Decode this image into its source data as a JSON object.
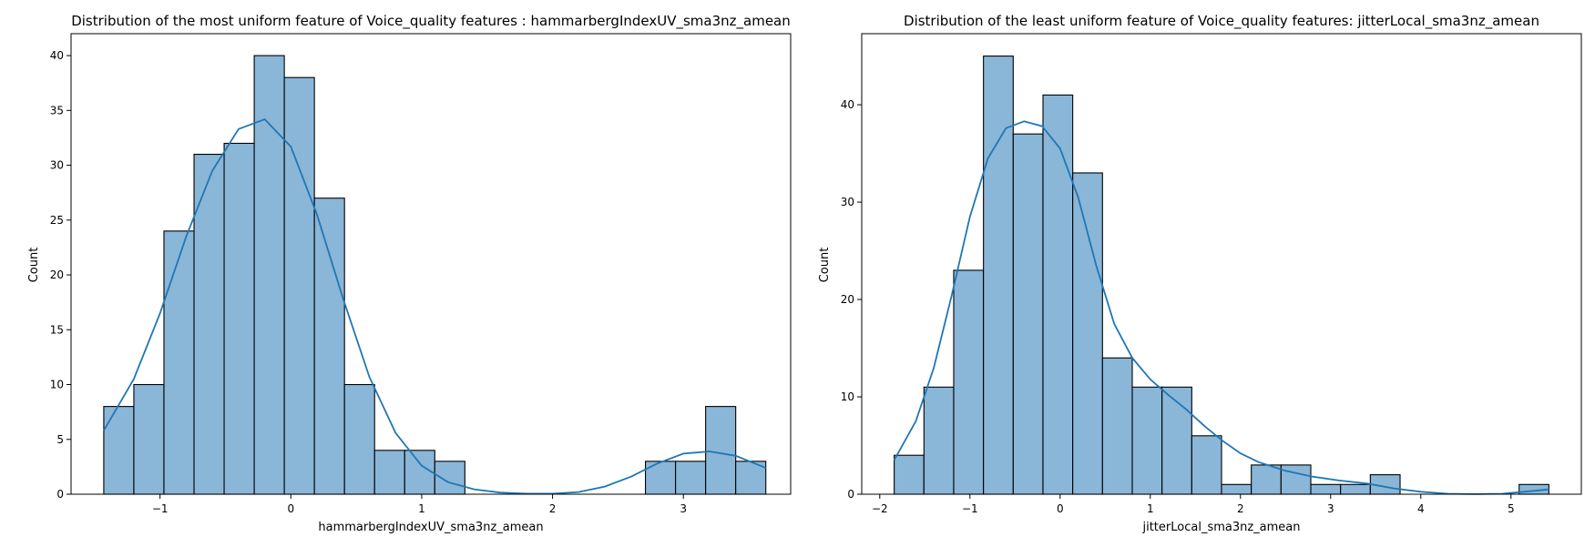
{
  "chart_data": [
    {
      "type": "bar",
      "title": "Distribution of the most uniform feature of Voice_quality features : hammarbergIndexUV_sma3nz_amean",
      "xlabel": "hammarbergIndexUV_sma3nz_amean",
      "ylabel": "Count",
      "xlim": [
        -1.68,
        3.82
      ],
      "ylim": [
        0,
        42
      ],
      "xticks": [
        -1,
        0,
        1,
        2,
        3
      ],
      "xtick_labels": [
        "−1",
        "0",
        "1",
        "2",
        "3"
      ],
      "yticks": [
        0,
        5,
        10,
        15,
        20,
        25,
        30,
        35,
        40
      ],
      "bin_edges": [
        -1.43,
        -1.2,
        -0.97,
        -0.74,
        -0.51,
        -0.28,
        -0.05,
        0.18,
        0.41,
        0.64,
        0.87,
        1.1,
        1.33,
        1.56,
        1.79,
        2.02,
        2.25,
        2.48,
        2.71,
        2.94,
        3.17,
        3.4,
        3.63
      ],
      "counts": [
        8,
        10,
        24,
        31,
        32,
        40,
        38,
        27,
        10,
        4,
        4,
        3,
        0,
        0,
        0,
        0,
        0,
        0,
        3,
        3,
        8,
        3
      ],
      "kde": {
        "x": [
          -1.43,
          -1.2,
          -1.0,
          -0.8,
          -0.6,
          -0.4,
          -0.2,
          0.0,
          0.2,
          0.4,
          0.6,
          0.8,
          1.0,
          1.2,
          1.4,
          1.6,
          1.8,
          2.0,
          2.2,
          2.4,
          2.6,
          2.8,
          3.0,
          3.2,
          3.4,
          3.63
        ],
        "y": [
          5.8,
          10.5,
          16.5,
          23.5,
          29.5,
          33.3,
          34.2,
          31.7,
          25.5,
          17.8,
          10.7,
          5.6,
          2.6,
          1.1,
          0.45,
          0.15,
          0.05,
          0.05,
          0.2,
          0.7,
          1.6,
          2.8,
          3.7,
          3.9,
          3.5,
          2.4
        ]
      }
    },
    {
      "type": "bar",
      "title": "Distribution of the least uniform feature of Voice_quality features: jitterLocal_sma3nz_amean",
      "xlabel": "jitterLocal_sma3nz_amean",
      "ylabel": "Count",
      "xlim": [
        -2.2,
        5.78
      ],
      "ylim": [
        0,
        47.3
      ],
      "xticks": [
        -2,
        -1,
        0,
        1,
        2,
        3,
        4,
        5
      ],
      "xtick_labels": [
        "−2",
        "−1",
        "0",
        "1",
        "2",
        "3",
        "4",
        "5"
      ],
      "yticks": [
        0,
        10,
        20,
        30,
        40
      ],
      "bin_edges": [
        -1.84,
        -1.51,
        -1.18,
        -0.85,
        -0.52,
        -0.19,
        0.14,
        0.47,
        0.8,
        1.13,
        1.46,
        1.79,
        2.12,
        2.45,
        2.78,
        3.11,
        3.44,
        3.77,
        4.1,
        4.43,
        4.76,
        5.09,
        5.42
      ],
      "counts": [
        4,
        11,
        23,
        45,
        37,
        41,
        33,
        14,
        11,
        11,
        6,
        1,
        3,
        3,
        1,
        1,
        2,
        0,
        0,
        0,
        0,
        1
      ],
      "kde": {
        "x": [
          -1.84,
          -1.6,
          -1.4,
          -1.2,
          -1.0,
          -0.8,
          -0.6,
          -0.4,
          -0.2,
          0.0,
          0.2,
          0.4,
          0.6,
          0.8,
          1.0,
          1.2,
          1.4,
          1.6,
          1.8,
          2.0,
          2.2,
          2.5,
          2.8,
          3.1,
          3.4,
          3.7,
          4.0,
          4.3,
          4.6,
          4.9,
          5.2,
          5.42
        ],
        "y": [
          3.5,
          7.5,
          13.0,
          20.5,
          28.5,
          34.5,
          37.6,
          38.3,
          37.8,
          35.5,
          30.5,
          23.5,
          17.5,
          14.0,
          11.8,
          10.2,
          8.7,
          7.0,
          5.5,
          4.2,
          3.3,
          2.4,
          1.8,
          1.4,
          1.1,
          0.6,
          0.25,
          0.05,
          0.01,
          0.05,
          0.3,
          0.5
        ]
      }
    }
  ]
}
